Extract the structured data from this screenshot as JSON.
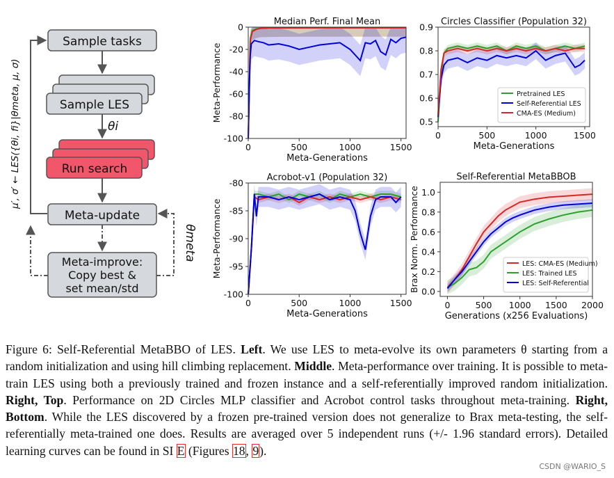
{
  "diagram": {
    "side_label": "μ′, σ′ ← LES({θi, fi}|θmeta, μ, σ)",
    "theta_i": "θi",
    "theta_meta": "θmeta",
    "boxes": {
      "sample_tasks": "Sample tasks",
      "sample_les": "Sample LES",
      "run_search": "Run search",
      "meta_update": "Meta-update",
      "meta_improve": [
        "Meta-improve:",
        "Copy best &",
        "set mean/std"
      ]
    },
    "colors": {
      "box_gray": "#d5d8dc",
      "box_red": "#f1566a"
    }
  },
  "chart_data": [
    {
      "type": "line",
      "title": "Median Perf. Final Mean",
      "xlabel": "Meta-Generations",
      "ylabel": "Meta-Performance",
      "xlim": [
        0,
        1550
      ],
      "ylim": [
        -100,
        0
      ],
      "xticks": [
        0,
        500,
        1000,
        1500
      ],
      "yticks": [
        -100,
        -80,
        -60,
        -40,
        -20,
        0
      ],
      "series": [
        {
          "color": "#2ca02c",
          "x": [
            0,
            10,
            20,
            40,
            80,
            120,
            200,
            400,
            800,
            1200,
            1550
          ],
          "y": [
            -100,
            -60,
            -10,
            -3,
            -1.5,
            -1,
            -0.8,
            -0.6,
            -0.5,
            -0.5,
            -0.5
          ]
        },
        {
          "color": "#d62728",
          "x": [
            0,
            10,
            20,
            40,
            80,
            120,
            200,
            400,
            800,
            1200,
            1550
          ],
          "y": [
            -100,
            -55,
            -12,
            -4,
            -2,
            -1,
            -0.8,
            -0.7,
            -0.6,
            -0.6,
            -0.6
          ]
        },
        {
          "color": "#0000dd",
          "x": [
            0,
            10,
            20,
            30,
            60,
            100,
            150,
            200,
            300,
            400,
            500,
            600,
            700,
            800,
            900,
            1000,
            1050,
            1100,
            1150,
            1200,
            1250,
            1300,
            1350,
            1400,
            1450,
            1500,
            1550
          ],
          "y": [
            -100,
            -55,
            -25,
            -15,
            -12,
            -13,
            -14,
            -16,
            -15,
            -17,
            -20,
            -18,
            -16,
            -15,
            -14,
            -20,
            -25,
            -30,
            -14,
            -15,
            -12,
            -22,
            -25,
            -11,
            -14,
            -10,
            -9
          ]
        }
      ]
    },
    {
      "type": "line",
      "title": "Circles Classifier (Population 32)",
      "xlabel": "Meta-Generations",
      "ylabel": "",
      "xlim": [
        0,
        1550
      ],
      "ylim": [
        0.48,
        0.9
      ],
      "xticks": [
        0,
        500,
        1000,
        1500
      ],
      "yticks": [
        0.5,
        0.6,
        0.7,
        0.8,
        0.9
      ],
      "legend": "bottom-right",
      "series": [
        {
          "name": "Pretrained LES",
          "color": "#2ca02c",
          "x": [
            0,
            30,
            60,
            100,
            200,
            300,
            400,
            500,
            600,
            700,
            800,
            900,
            1000,
            1100,
            1200,
            1300,
            1400,
            1500
          ],
          "y": [
            0.5,
            0.7,
            0.79,
            0.81,
            0.82,
            0.81,
            0.82,
            0.81,
            0.82,
            0.8,
            0.82,
            0.81,
            0.82,
            0.8,
            0.81,
            0.82,
            0.81,
            0.82
          ]
        },
        {
          "name": "Self-Referential LES",
          "color": "#0000dd",
          "x": [
            0,
            30,
            60,
            100,
            200,
            300,
            400,
            500,
            600,
            700,
            800,
            900,
            1000,
            1100,
            1200,
            1300,
            1400,
            1450,
            1500
          ],
          "y": [
            0.52,
            0.68,
            0.74,
            0.76,
            0.77,
            0.75,
            0.77,
            0.76,
            0.78,
            0.77,
            0.78,
            0.77,
            0.8,
            0.76,
            0.78,
            0.79,
            0.73,
            0.74,
            0.76
          ]
        },
        {
          "name": "CMA-ES (Medium)",
          "color": "#d62728",
          "x": [
            0,
            30,
            60,
            100,
            200,
            300,
            400,
            500,
            600,
            700,
            800,
            900,
            1000,
            1100,
            1200,
            1300,
            1400,
            1500
          ],
          "y": [
            0.53,
            0.72,
            0.79,
            0.8,
            0.81,
            0.8,
            0.81,
            0.8,
            0.81,
            0.8,
            0.81,
            0.8,
            0.81,
            0.8,
            0.81,
            0.8,
            0.81,
            0.81
          ]
        }
      ]
    },
    {
      "type": "line",
      "title": "Acrobot-v1 (Population 32)",
      "xlabel": "Meta-Generations",
      "ylabel": "Meta-Performance",
      "xlim": [
        0,
        1550
      ],
      "ylim": [
        -100,
        -80
      ],
      "xticks": [
        0,
        500,
        1000,
        1500
      ],
      "yticks": [
        -100,
        -95,
        -90,
        -85,
        -80
      ],
      "series": [
        {
          "color": "#2ca02c",
          "x": [
            0,
            30,
            60,
            100,
            200,
            300,
            400,
            500,
            600,
            700,
            800,
            900,
            1000,
            1100,
            1200,
            1300,
            1400,
            1500
          ],
          "y": [
            -100,
            -92,
            -82,
            -82,
            -82.5,
            -82,
            -83,
            -82,
            -82.5,
            -82,
            -83,
            -82,
            -82.5,
            -82,
            -82.5,
            -82,
            -82,
            -82.5
          ]
        },
        {
          "color": "#d62728",
          "x": [
            0,
            30,
            60,
            100,
            200,
            300,
            400,
            500,
            600,
            700,
            800,
            900,
            1000,
            1100,
            1200,
            1300,
            1400,
            1500
          ],
          "y": [
            -100,
            -92,
            -82.5,
            -83,
            -82.5,
            -83,
            -82.5,
            -83.5,
            -82.5,
            -83,
            -82.5,
            -83,
            -82.5,
            -83,
            -82.5,
            -83,
            -82.5,
            -83
          ]
        },
        {
          "color": "#0000dd",
          "x": [
            0,
            30,
            60,
            80,
            100,
            200,
            300,
            400,
            500,
            600,
            700,
            800,
            900,
            1000,
            1050,
            1100,
            1150,
            1200,
            1250,
            1300,
            1400,
            1450,
            1500
          ],
          "y": [
            -100,
            -92,
            -82,
            -86,
            -82.5,
            -82.5,
            -83,
            -82.5,
            -83,
            -82.5,
            -82,
            -83,
            -82.5,
            -83,
            -85,
            -89,
            -92,
            -86,
            -83,
            -82.5,
            -82.5,
            -83.5,
            -82.5
          ]
        }
      ]
    },
    {
      "type": "line",
      "title": "Self-Referential MetaBBOB",
      "xlabel": "Generations (x256 Evaluations)",
      "ylabel": "Brax Norm. Performance",
      "xlim": [
        -100,
        2000
      ],
      "ylim": [
        -0.05,
        1.1
      ],
      "xticks": [
        0,
        500,
        1000,
        1500,
        2000
      ],
      "yticks": [
        0.0,
        0.2,
        0.4,
        0.6,
        0.8,
        1.0
      ],
      "legend": "bottom-right",
      "series": [
        {
          "name": "LES: CMA-ES (Medium)",
          "color": "#d62728",
          "x": [
            0,
            100,
            200,
            300,
            400,
            500,
            600,
            700,
            800,
            900,
            1000,
            1200,
            1400,
            1600,
            1800,
            2000
          ],
          "y": [
            0.04,
            0.12,
            0.22,
            0.35,
            0.48,
            0.6,
            0.68,
            0.76,
            0.82,
            0.86,
            0.9,
            0.93,
            0.95,
            0.96,
            0.97,
            0.98
          ]
        },
        {
          "name": "LES: Trained LES",
          "color": "#2ca02c",
          "x": [
            0,
            100,
            200,
            300,
            400,
            500,
            600,
            700,
            800,
            900,
            1000,
            1200,
            1400,
            1600,
            1800,
            2000
          ],
          "y": [
            0.04,
            0.08,
            0.14,
            0.22,
            0.24,
            0.3,
            0.4,
            0.45,
            0.5,
            0.55,
            0.6,
            0.68,
            0.73,
            0.77,
            0.8,
            0.82
          ]
        },
        {
          "name": "LES: Self-Referential",
          "color": "#0000dd",
          "x": [
            0,
            100,
            200,
            300,
            400,
            500,
            600,
            700,
            800,
            900,
            1000,
            1200,
            1400,
            1600,
            1800,
            2000
          ],
          "y": [
            0.03,
            0.12,
            0.2,
            0.3,
            0.4,
            0.5,
            0.58,
            0.64,
            0.7,
            0.74,
            0.77,
            0.82,
            0.85,
            0.87,
            0.88,
            0.89
          ]
        }
      ]
    }
  ],
  "caption": {
    "figure_label": "Figure 6:",
    "title": " Self-Referential MetaBBO of LES. ",
    "left_label": "Left",
    "left_text": ". We use LES to meta-evolve its own parameters θ starting from a random initialization and using hill climbing replacement. ",
    "middle_label": "Middle",
    "middle_text": ". Meta-performance over training. It is possible to meta-train LES using both a previously trained and frozen instance and a self-referentially improved random initialization. ",
    "right_top_label": "Right, Top",
    "right_top_text": ". Performance on 2D Circles MLP classifier and Acrobot control tasks throughout meta-training. ",
    "right_bottom_label": "Right, Bottom",
    "right_bottom_text": ". While the LES discovered by a frozen pre-trained version does not generalize to Brax meta-testing, the self-referentially meta-trained one does. Results are averaged over 5 independent runs (+/- 1.96 standard errors). Detailed learning curves can be found in SI ",
    "ref_si": "E",
    "figures_prefix": " (Figures ",
    "ref_fig_a": "18",
    "comma": ", ",
    "ref_fig_b": "9",
    "end": ")."
  },
  "watermark": "CSDN @WARIO_S"
}
